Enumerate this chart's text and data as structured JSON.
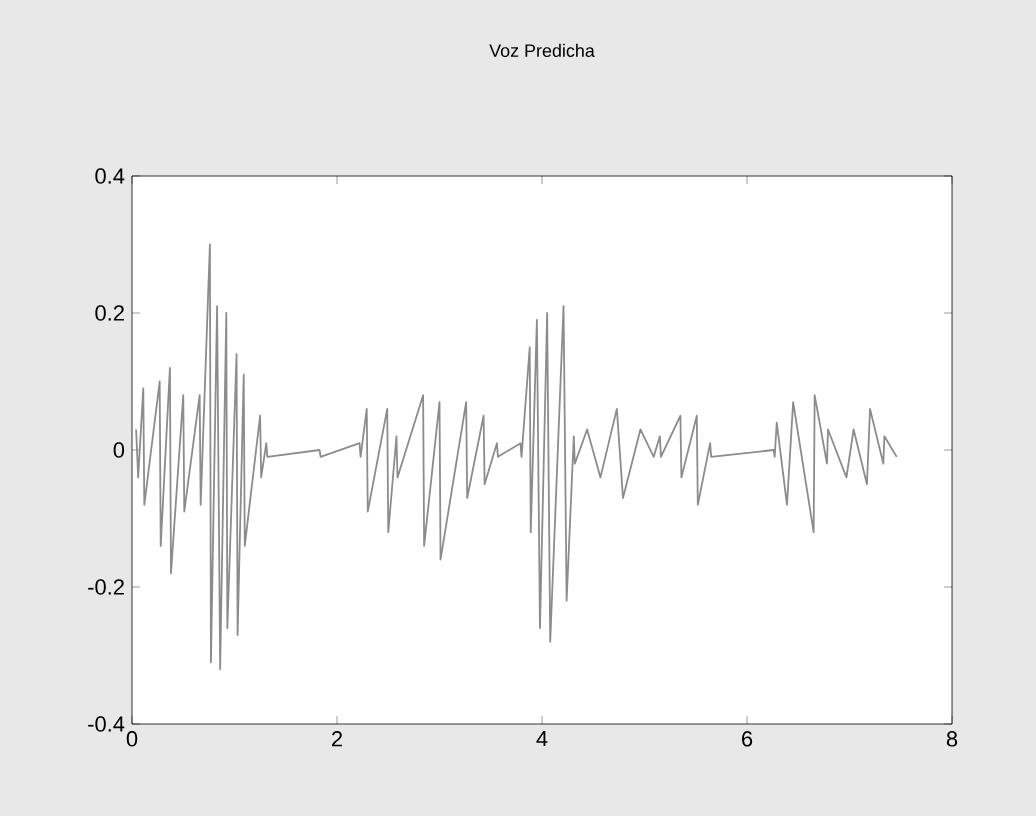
{
  "chart_data": {
    "type": "line",
    "title": "Voz Predicha",
    "color": "#8c8c8c",
    "line_style": "solid",
    "x": [
      0.04,
      0.06,
      0.11,
      0.12,
      0.27,
      0.28,
      0.37,
      0.38,
      0.5,
      0.51,
      0.66,
      0.67,
      0.76,
      0.77,
      0.83,
      0.86,
      0.92,
      0.93,
      1.02,
      1.03,
      1.09,
      1.1,
      1.25,
      1.26,
      1.31,
      1.32,
      1.83,
      1.84,
      2.22,
      2.23,
      2.29,
      2.3,
      2.49,
      2.5,
      2.58,
      2.59,
      2.84,
      2.85,
      3.0,
      3.01,
      3.26,
      3.27,
      3.43,
      3.44,
      3.56,
      3.57,
      3.79,
      3.8,
      3.88,
      3.89,
      3.95,
      3.98,
      4.05,
      4.08,
      4.21,
      4.24,
      4.31,
      4.32,
      4.44,
      4.57,
      4.73,
      4.79,
      4.96,
      5.09,
      5.15,
      5.16,
      5.35,
      5.36,
      5.51,
      5.52,
      5.64,
      5.65,
      6.26,
      6.27,
      6.29,
      6.39,
      6.45,
      6.65,
      6.66,
      6.78,
      6.79,
      6.97,
      7.04,
      7.17,
      7.2,
      7.33,
      7.34,
      7.46
    ],
    "values": [
      0.03,
      -0.04,
      0.09,
      -0.08,
      0.1,
      -0.14,
      0.12,
      -0.18,
      0.08,
      -0.09,
      0.08,
      -0.08,
      0.3,
      -0.31,
      0.21,
      -0.32,
      0.2,
      -0.26,
      0.14,
      -0.27,
      0.11,
      -0.14,
      0.05,
      -0.04,
      0.01,
      -0.01,
      0.0,
      -0.01,
      0.01,
      -0.01,
      0.06,
      -0.09,
      0.06,
      -0.12,
      0.02,
      -0.04,
      0.08,
      -0.14,
      0.07,
      -0.16,
      0.07,
      -0.07,
      0.05,
      -0.05,
      0.01,
      -0.01,
      0.01,
      -0.01,
      0.15,
      -0.12,
      0.19,
      -0.26,
      0.2,
      -0.28,
      0.21,
      -0.22,
      0.02,
      -0.02,
      0.03,
      -0.04,
      0.06,
      -0.07,
      0.03,
      -0.01,
      0.02,
      -0.01,
      0.05,
      -0.04,
      0.05,
      -0.08,
      0.01,
      -0.01,
      0.0,
      -0.01,
      0.04,
      -0.08,
      0.07,
      -0.12,
      0.08,
      -0.02,
      0.03,
      -0.04,
      0.03,
      -0.05,
      0.06,
      -0.02,
      0.02,
      -0.01
    ],
    "xlim": [
      0,
      8
    ],
    "ylim": [
      -0.4,
      0.4
    ],
    "xticks": [
      0,
      2,
      4,
      6,
      8
    ],
    "yticks": [
      -0.4,
      -0.2,
      0,
      0.2,
      0.4
    ]
  }
}
